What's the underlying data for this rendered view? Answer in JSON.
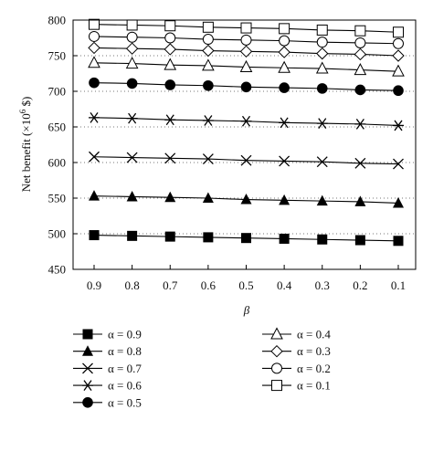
{
  "chart_data": {
    "type": "line",
    "xlabel": "β",
    "ylabel_main": "Net benefit (×10",
    "ylabel_sup": "6",
    "ylabel_unit": " $)",
    "categories": [
      "0.9",
      "0.8",
      "0.7",
      "0.6",
      "0.5",
      "0.4",
      "0.3",
      "0.2",
      "0.1"
    ],
    "ylim": [
      450,
      800
    ],
    "yticks": [
      450,
      500,
      550,
      600,
      650,
      700,
      750,
      800
    ],
    "grid": "dotted horizontal",
    "legend_placement": "bottom",
    "series": [
      {
        "name": "α = 0.9",
        "marker": "filled-square",
        "values": [
          498,
          497,
          496,
          495,
          494,
          493,
          492,
          491,
          490
        ]
      },
      {
        "name": "α = 0.8",
        "marker": "filled-triangle",
        "values": [
          553,
          552,
          551,
          550,
          548,
          547,
          546,
          545,
          543
        ]
      },
      {
        "name": "α = 0.7",
        "marker": "x",
        "values": [
          608,
          607,
          606,
          605,
          603,
          602,
          601,
          599,
          598
        ]
      },
      {
        "name": "α = 0.6",
        "marker": "asterisk",
        "values": [
          663,
          662,
          660,
          659,
          658,
          656,
          655,
          654,
          652
        ]
      },
      {
        "name": "α = 0.5",
        "marker": "filled-circle",
        "values": [
          712,
          711,
          709,
          708,
          706,
          705,
          704,
          702,
          701
        ]
      },
      {
        "name": "α = 0.4",
        "marker": "open-triangle",
        "values": [
          740,
          739,
          737,
          736,
          734,
          733,
          732,
          730,
          728
        ]
      },
      {
        "name": "α = 0.3",
        "marker": "open-diamond",
        "values": [
          761,
          760,
          759,
          757,
          756,
          755,
          753,
          752,
          750
        ]
      },
      {
        "name": "α = 0.2",
        "marker": "open-circle",
        "values": [
          777,
          776,
          775,
          773,
          772,
          771,
          769,
          768,
          767
        ]
      },
      {
        "name": "α = 0.1",
        "marker": "open-square",
        "values": [
          794,
          793,
          792,
          790,
          789,
          788,
          786,
          785,
          783
        ]
      }
    ]
  }
}
